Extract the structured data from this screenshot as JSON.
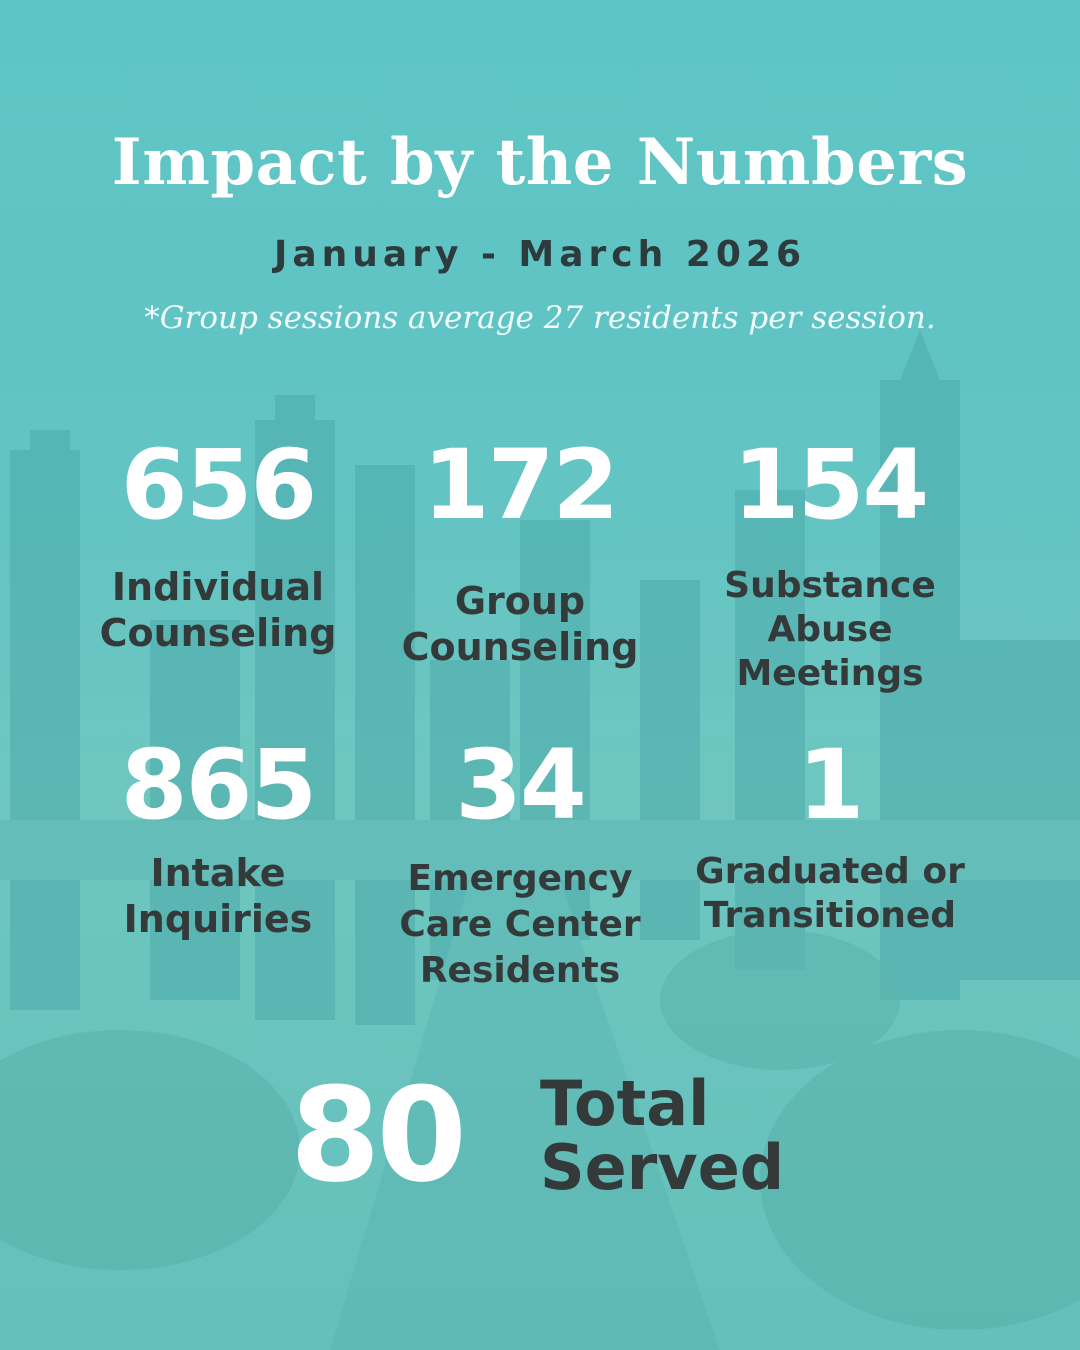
{
  "header": {
    "title": "Impact by the Numbers",
    "date_range": "January - March 2026",
    "footnote": "*Group sessions average 27 residents per session."
  },
  "stats": [
    {
      "value": "656",
      "label": "Individual\nCounseling"
    },
    {
      "value": "172",
      "label": "Group\nCounseling"
    },
    {
      "value": "154",
      "label": "Substance\nAbuse\nMeetings"
    },
    {
      "value": "865",
      "label": "Intake\nInquiries"
    },
    {
      "value": "34",
      "label": "Emergency\nCare Center\nResidents"
    },
    {
      "value": "1",
      "label": "Graduated or\nTransitioned"
    }
  ],
  "total": {
    "value": "80",
    "label": "Total\nServed"
  },
  "colors": {
    "background": "#62c4c3",
    "title_text": "#ffffff",
    "label_text": "#343a3a"
  }
}
